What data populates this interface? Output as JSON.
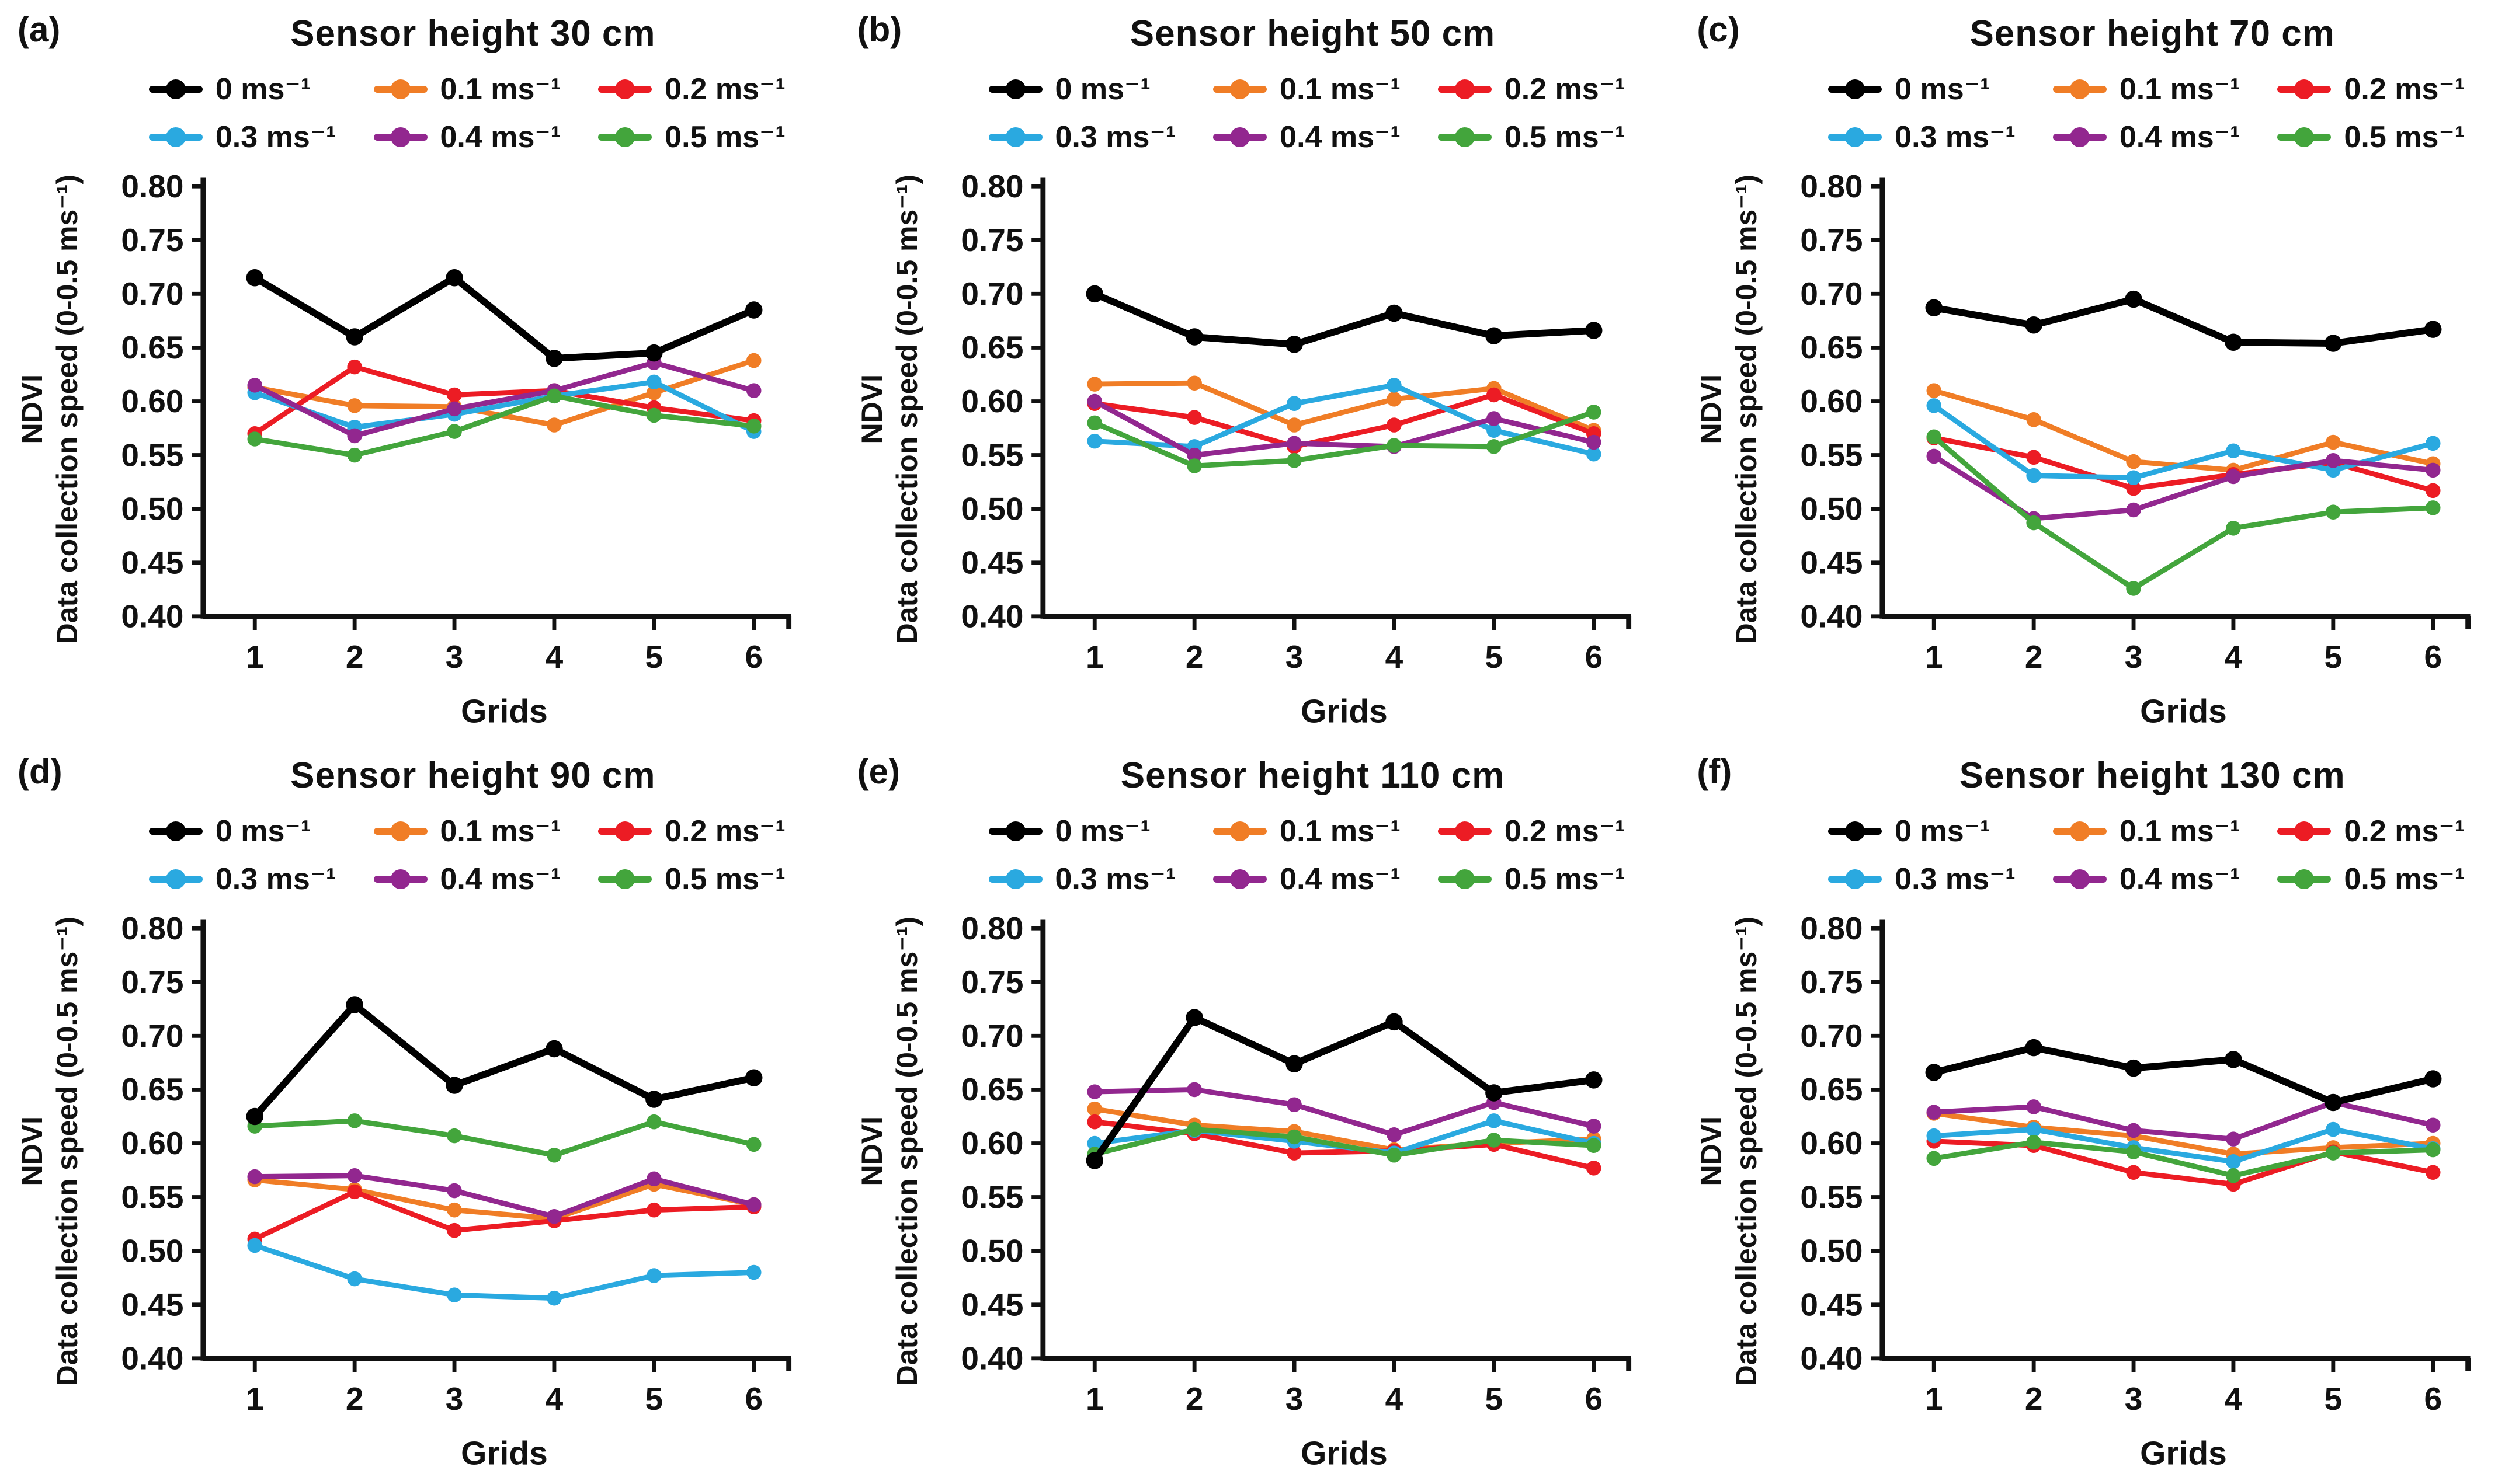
{
  "figure": {
    "xlabel": "Grids",
    "ylabel_line1": "NDVI",
    "ylabel_line2": "Data collection speed (0-0.5 ms⁻¹)"
  },
  "axes": {
    "ylim": [
      0.4,
      0.8
    ],
    "y_tick_step": 0.05,
    "y_ticks": [
      "0.80",
      "0.75",
      "0.70",
      "0.65",
      "0.60",
      "0.55",
      "0.50",
      "0.45",
      "0.40"
    ],
    "x_ticks": [
      "1",
      "2",
      "3",
      "4",
      "5",
      "6"
    ],
    "grid": "off"
  },
  "legend": {
    "position": "top",
    "items": [
      {
        "label": "0 ms⁻¹",
        "color": "#000000"
      },
      {
        "label": "0.1 ms⁻¹",
        "color": "#F07D26"
      },
      {
        "label": "0.2 ms⁻¹",
        "color": "#EC1C24"
      },
      {
        "label": "0.3 ms⁻¹",
        "color": "#2AA9E0"
      },
      {
        "label": "0.4 ms⁻¹",
        "color": "#92278F"
      },
      {
        "label": "0.5 ms⁻¹",
        "color": "#43A53C"
      }
    ]
  },
  "chart_data": [
    {
      "type": "line",
      "panel_label": "(a)",
      "title": "Sensor height 30 cm",
      "x": [
        1,
        2,
        3,
        4,
        5,
        6
      ],
      "series": [
        {
          "name": "0 ms⁻¹",
          "values": [
            0.715,
            0.66,
            0.715,
            0.64,
            0.645,
            0.685
          ]
        },
        {
          "name": "0.1 ms⁻¹",
          "values": [
            0.613,
            0.596,
            0.595,
            0.578,
            0.608,
            0.638
          ]
        },
        {
          "name": "0.2 ms⁻¹",
          "values": [
            0.57,
            0.632,
            0.606,
            0.61,
            0.594,
            0.582
          ]
        },
        {
          "name": "0.3 ms⁻¹",
          "values": [
            0.608,
            0.576,
            0.588,
            0.605,
            0.618,
            0.572
          ]
        },
        {
          "name": "0.4 ms⁻¹",
          "values": [
            0.615,
            0.568,
            0.593,
            0.61,
            0.636,
            0.61
          ]
        },
        {
          "name": "0.5 ms⁻¹",
          "values": [
            0.565,
            0.55,
            0.572,
            0.605,
            0.587,
            0.577
          ]
        }
      ]
    },
    {
      "type": "line",
      "panel_label": "(b)",
      "title": "Sensor height 50 cm",
      "x": [
        1,
        2,
        3,
        4,
        5,
        6
      ],
      "series": [
        {
          "name": "0 ms⁻¹",
          "values": [
            0.7,
            0.66,
            0.653,
            0.682,
            0.661,
            0.666
          ]
        },
        {
          "name": "0.1 ms⁻¹",
          "values": [
            0.616,
            0.617,
            0.578,
            0.602,
            0.612,
            0.573
          ]
        },
        {
          "name": "0.2 ms⁻¹",
          "values": [
            0.598,
            0.585,
            0.558,
            0.578,
            0.606,
            0.57
          ]
        },
        {
          "name": "0.3 ms⁻¹",
          "values": [
            0.563,
            0.558,
            0.598,
            0.615,
            0.573,
            0.551
          ]
        },
        {
          "name": "0.4 ms⁻¹",
          "values": [
            0.6,
            0.55,
            0.561,
            0.558,
            0.584,
            0.562
          ]
        },
        {
          "name": "0.5 ms⁻¹",
          "values": [
            0.58,
            0.54,
            0.545,
            0.559,
            0.558,
            0.59
          ]
        }
      ]
    },
    {
      "type": "line",
      "panel_label": "(c)",
      "title": "Sensor height 70 cm",
      "x": [
        1,
        2,
        3,
        4,
        5,
        6
      ],
      "series": [
        {
          "name": "0 ms⁻¹",
          "values": [
            0.687,
            0.671,
            0.695,
            0.655,
            0.654,
            0.667
          ]
        },
        {
          "name": "0.1 ms⁻¹",
          "values": [
            0.61,
            0.583,
            0.544,
            0.536,
            0.562,
            0.542
          ]
        },
        {
          "name": "0.2 ms⁻¹",
          "values": [
            0.566,
            0.548,
            0.519,
            0.532,
            0.543,
            0.517
          ]
        },
        {
          "name": "0.3 ms⁻¹",
          "values": [
            0.596,
            0.531,
            0.529,
            0.554,
            0.536,
            0.561
          ]
        },
        {
          "name": "0.4 ms⁻¹",
          "values": [
            0.549,
            0.491,
            0.499,
            0.53,
            0.545,
            0.536
          ]
        },
        {
          "name": "0.5 ms⁻¹",
          "values": [
            0.567,
            0.487,
            0.426,
            0.482,
            0.497,
            0.501
          ]
        }
      ]
    },
    {
      "type": "line",
      "panel_label": "(d)",
      "title": "Sensor height 90 cm",
      "x": [
        1,
        2,
        3,
        4,
        5,
        6
      ],
      "series": [
        {
          "name": "0 ms⁻¹",
          "values": [
            0.625,
            0.729,
            0.654,
            0.688,
            0.641,
            0.661
          ]
        },
        {
          "name": "0.1 ms⁻¹",
          "values": [
            0.566,
            0.557,
            0.538,
            0.53,
            0.562,
            0.543
          ]
        },
        {
          "name": "0.2 ms⁻¹",
          "values": [
            0.511,
            0.555,
            0.519,
            0.528,
            0.538,
            0.541
          ]
        },
        {
          "name": "0.3 ms⁻¹",
          "values": [
            0.505,
            0.474,
            0.459,
            0.456,
            0.477,
            0.48
          ]
        },
        {
          "name": "0.4 ms⁻¹",
          "values": [
            0.569,
            0.57,
            0.556,
            0.532,
            0.567,
            0.543
          ]
        },
        {
          "name": "0.5 ms⁻¹",
          "values": [
            0.616,
            0.621,
            0.607,
            0.589,
            0.62,
            0.599
          ]
        }
      ]
    },
    {
      "type": "line",
      "panel_label": "(e)",
      "title": "Sensor height 110 cm",
      "x": [
        1,
        2,
        3,
        4,
        5,
        6
      ],
      "series": [
        {
          "name": "0 ms⁻¹",
          "values": [
            0.584,
            0.717,
            0.674,
            0.713,
            0.647,
            0.659
          ]
        },
        {
          "name": "0.1 ms⁻¹",
          "values": [
            0.632,
            0.617,
            0.611,
            0.594,
            0.6,
            0.604
          ]
        },
        {
          "name": "0.2 ms⁻¹",
          "values": [
            0.62,
            0.609,
            0.591,
            0.593,
            0.599,
            0.577
          ]
        },
        {
          "name": "0.3 ms⁻¹",
          "values": [
            0.6,
            0.612,
            0.602,
            0.591,
            0.621,
            0.6
          ]
        },
        {
          "name": "0.4 ms⁻¹",
          "values": [
            0.648,
            0.65,
            0.636,
            0.608,
            0.638,
            0.616
          ]
        },
        {
          "name": "0.5 ms⁻¹",
          "values": [
            0.59,
            0.613,
            0.606,
            0.589,
            0.603,
            0.598
          ]
        }
      ]
    },
    {
      "type": "line",
      "panel_label": "(f)",
      "title": "Sensor height 130 cm",
      "x": [
        1,
        2,
        3,
        4,
        5,
        6
      ],
      "series": [
        {
          "name": "0 ms⁻¹",
          "values": [
            0.666,
            0.689,
            0.67,
            0.678,
            0.638,
            0.66
          ]
        },
        {
          "name": "0.1 ms⁻¹",
          "values": [
            0.628,
            0.615,
            0.607,
            0.59,
            0.596,
            0.6
          ]
        },
        {
          "name": "0.2 ms⁻¹",
          "values": [
            0.602,
            0.598,
            0.573,
            0.562,
            0.592,
            0.573
          ]
        },
        {
          "name": "0.3 ms⁻¹",
          "values": [
            0.607,
            0.613,
            0.596,
            0.583,
            0.613,
            0.595
          ]
        },
        {
          "name": "0.4 ms⁻¹",
          "values": [
            0.629,
            0.634,
            0.612,
            0.604,
            0.638,
            0.617
          ]
        },
        {
          "name": "0.5 ms⁻¹",
          "values": [
            0.586,
            0.601,
            0.592,
            0.57,
            0.591,
            0.594
          ]
        }
      ]
    }
  ]
}
